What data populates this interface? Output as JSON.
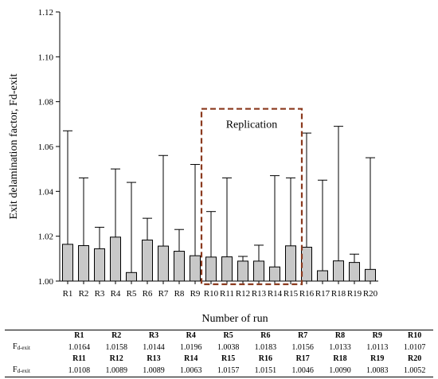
{
  "chart_data": {
    "type": "bar",
    "categories": [
      "R1",
      "R2",
      "R3",
      "R4",
      "R5",
      "R6",
      "R7",
      "R8",
      "R9",
      "R10",
      "R11",
      "R12",
      "R13",
      "R14",
      "R15",
      "R16",
      "R17",
      "R18",
      "R19",
      "R20"
    ],
    "values": [
      1.0164,
      1.0158,
      1.0144,
      1.0196,
      1.0038,
      1.0183,
      1.0156,
      1.0133,
      1.0113,
      1.0107,
      1.0108,
      1.0089,
      1.0089,
      1.0063,
      1.0157,
      1.0151,
      1.0046,
      1.009,
      1.0083,
      1.0052
    ],
    "error_upper": [
      1.067,
      1.046,
      1.024,
      1.05,
      1.044,
      1.028,
      1.056,
      1.023,
      1.052,
      1.031,
      1.046,
      1.011,
      1.016,
      1.047,
      1.046,
      1.066,
      1.045,
      1.069,
      1.012,
      1.055
    ],
    "ylim": [
      1.0,
      1.12
    ],
    "yticks": [
      "1.00",
      "1.02",
      "1.04",
      "1.06",
      "1.08",
      "1.10",
      "1.12"
    ],
    "xlabel": "Number of run",
    "ylabel": "Exit delamination factor, Fd-exit",
    "bar_color": "#c8c8c8",
    "annotation": {
      "label": "Replication",
      "from": "R10",
      "to": "R15",
      "color": "#8b3a1e"
    }
  },
  "table": {
    "row_label_main": "F",
    "row_label_sub": "d-exit",
    "header1": [
      "R1",
      "R2",
      "R3",
      "R4",
      "R5",
      "R6",
      "R7",
      "R8",
      "R9",
      "R10"
    ],
    "row1": [
      "1.0164",
      "1.0158",
      "1.0144",
      "1.0196",
      "1.0038",
      "1.0183",
      "1.0156",
      "1.0133",
      "1.0113",
      "1.0107"
    ],
    "header2": [
      "R11",
      "R12",
      "R13",
      "R14",
      "R15",
      "R16",
      "R17",
      "R18",
      "R19",
      "R20"
    ],
    "row2": [
      "1.0108",
      "1.0089",
      "1.0089",
      "1.0063",
      "1.0157",
      "1.0151",
      "1.0046",
      "1.0090",
      "1.0083",
      "1.0052"
    ]
  }
}
